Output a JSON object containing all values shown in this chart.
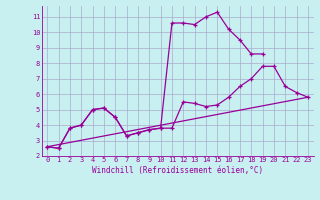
{
  "bg_color": "#c8f0f0",
  "grid_color": "#aaaacc",
  "line_color": "#990099",
  "xlim": [
    -0.5,
    23.5
  ],
  "ylim": [
    2.0,
    11.7
  ],
  "xticks": [
    0,
    1,
    2,
    3,
    4,
    5,
    6,
    7,
    8,
    9,
    10,
    11,
    12,
    13,
    14,
    15,
    16,
    17,
    18,
    19,
    20,
    21,
    22,
    23
  ],
  "yticks": [
    2,
    3,
    4,
    5,
    6,
    7,
    8,
    9,
    10,
    11
  ],
  "xlabel": "Windchill (Refroidissement éolien,°C)",
  "line1_x": [
    0,
    1,
    2,
    3,
    4,
    5,
    6,
    7,
    8,
    9,
    10,
    11,
    12,
    13,
    14,
    15,
    16,
    17,
    18,
    19,
    20,
    21,
    22,
    23
  ],
  "line1_y": [
    2.6,
    2.5,
    3.8,
    4.0,
    5.0,
    5.1,
    4.5,
    3.3,
    3.5,
    3.7,
    3.8,
    3.8,
    5.5,
    5.4,
    5.2,
    5.3,
    5.8,
    6.5,
    7.0,
    7.8,
    7.8,
    6.5,
    6.1,
    5.8
  ],
  "line2_x": [
    0,
    1,
    2,
    3,
    4,
    5,
    6,
    7,
    8,
    9,
    10,
    11,
    12,
    13,
    14,
    15,
    16,
    17,
    18,
    19,
    20,
    21,
    22,
    23
  ],
  "line2_y": [
    2.6,
    2.5,
    3.8,
    4.0,
    5.0,
    5.1,
    4.5,
    3.3,
    3.5,
    3.7,
    3.8,
    10.6,
    10.6,
    10.5,
    11.0,
    11.3,
    10.2,
    9.5,
    8.6,
    8.6,
    null,
    null,
    null,
    null
  ],
  "line3_x": [
    0,
    23
  ],
  "line3_y": [
    2.6,
    5.8
  ]
}
